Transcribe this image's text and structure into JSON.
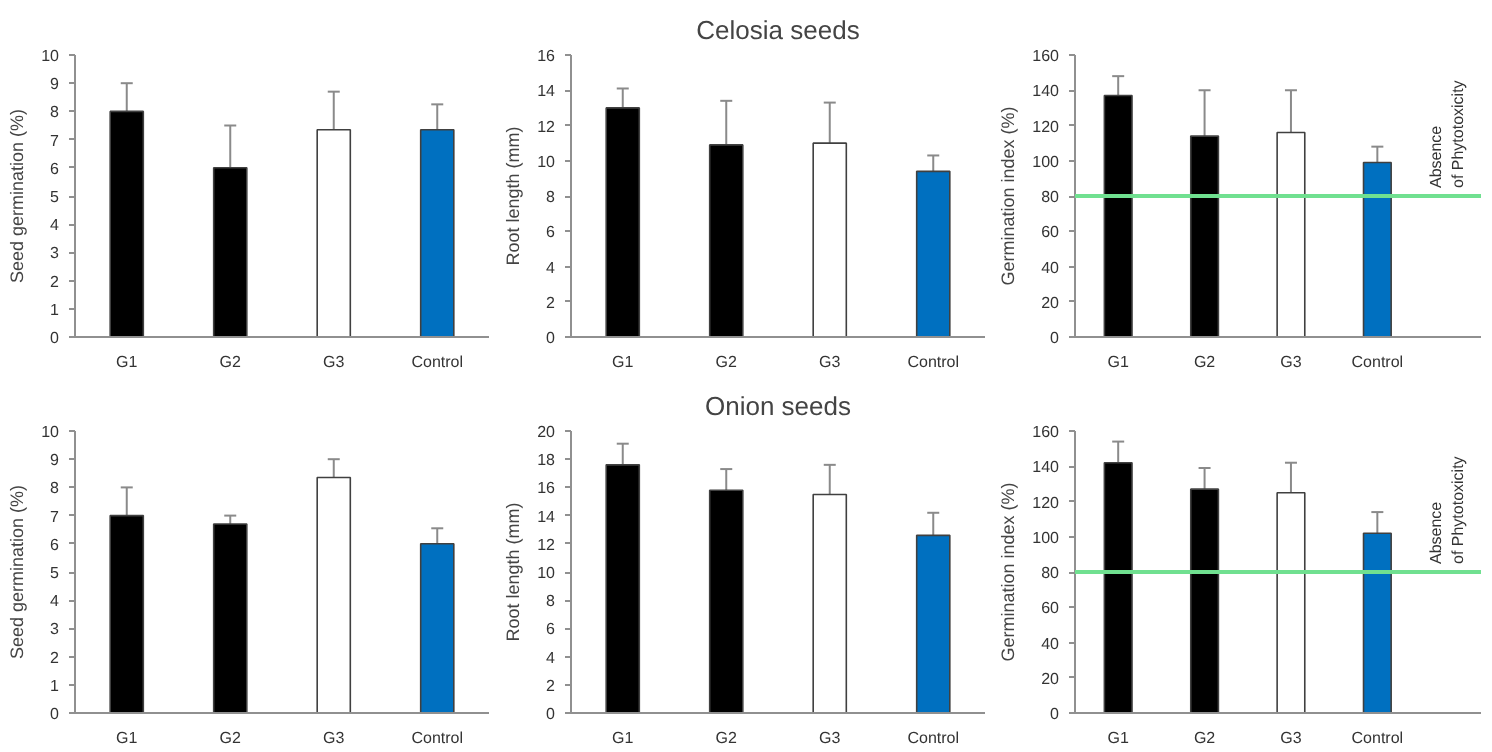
{
  "chart_data": [
    {
      "type": "bar",
      "ylabel": "Seed germination (%)",
      "categories": [
        "G1",
        "G2",
        "G3",
        "Control"
      ],
      "values": [
        8.0,
        6.0,
        7.35,
        7.35
      ],
      "errors": [
        1.0,
        1.5,
        1.35,
        0.9
      ],
      "colors": [
        "#000000",
        "#000000",
        "#ffffff",
        "#0070c0"
      ],
      "ylim": [
        0,
        10
      ],
      "yticks": [
        0,
        1,
        2,
        3,
        4,
        5,
        6,
        7,
        8,
        9,
        10
      ],
      "grid": false
    },
    {
      "type": "bar",
      "title": "Celosia seeds",
      "ylabel": "Root length (mm)",
      "categories": [
        "G1",
        "G2",
        "G3",
        "Control"
      ],
      "values": [
        13.0,
        10.9,
        11.0,
        9.4
      ],
      "errors": [
        1.1,
        2.5,
        2.3,
        0.9
      ],
      "colors": [
        "#000000",
        "#000000",
        "#ffffff",
        "#0070c0"
      ],
      "ylim": [
        0,
        16
      ],
      "yticks": [
        0,
        2,
        4,
        6,
        8,
        10,
        12,
        14,
        16
      ],
      "grid": false
    },
    {
      "type": "bar",
      "ylabel": "Germination index (%)",
      "categories": [
        "G1",
        "G2",
        "G3",
        "Control"
      ],
      "values": [
        137,
        114,
        116,
        99
      ],
      "errors": [
        11,
        26,
        24,
        9
      ],
      "colors": [
        "#000000",
        "#000000",
        "#ffffff",
        "#0070c0"
      ],
      "ylim": [
        0,
        160
      ],
      "yticks": [
        0,
        20,
        40,
        60,
        80,
        100,
        120,
        140,
        160
      ],
      "grid": false,
      "ref_lines": [
        {
          "axis": "y",
          "value": 80,
          "label": "Absence of Phytotoxicity",
          "color": "#70e090"
        }
      ]
    },
    {
      "type": "bar",
      "ylabel": "Seed germination (%)",
      "categories": [
        "G1",
        "G2",
        "G3",
        "Control"
      ],
      "values": [
        7.0,
        6.7,
        8.35,
        6.0
      ],
      "errors": [
        1.0,
        0.3,
        0.65,
        0.55
      ],
      "colors": [
        "#000000",
        "#000000",
        "#ffffff",
        "#0070c0"
      ],
      "ylim": [
        0,
        10
      ],
      "yticks": [
        0,
        1,
        2,
        3,
        4,
        5,
        6,
        7,
        8,
        9,
        10
      ],
      "grid": false
    },
    {
      "type": "bar",
      "title": "Onion seeds",
      "ylabel": "Root length (mm)",
      "categories": [
        "G1",
        "G2",
        "G3",
        "Control"
      ],
      "values": [
        17.6,
        15.8,
        15.5,
        12.6
      ],
      "errors": [
        1.5,
        1.5,
        2.1,
        1.6
      ],
      "colors": [
        "#000000",
        "#000000",
        "#ffffff",
        "#0070c0"
      ],
      "ylim": [
        0,
        20
      ],
      "yticks": [
        0,
        2,
        4,
        6,
        8,
        10,
        12,
        14,
        16,
        18,
        20
      ],
      "grid": false
    },
    {
      "type": "bar",
      "ylabel": "Germination index (%)",
      "categories": [
        "G1",
        "G2",
        "G3",
        "Control"
      ],
      "values": [
        142,
        127,
        125,
        102
      ],
      "errors": [
        12,
        12,
        17,
        12
      ],
      "colors": [
        "#000000",
        "#000000",
        "#ffffff",
        "#0070c0"
      ],
      "ylim": [
        0,
        160
      ],
      "yticks": [
        0,
        20,
        40,
        60,
        80,
        100,
        120,
        140,
        160
      ],
      "grid": false,
      "ref_lines": [
        {
          "axis": "y",
          "value": 80,
          "label": "Absence of Phytotoxicity",
          "color": "#70e090"
        }
      ]
    }
  ]
}
